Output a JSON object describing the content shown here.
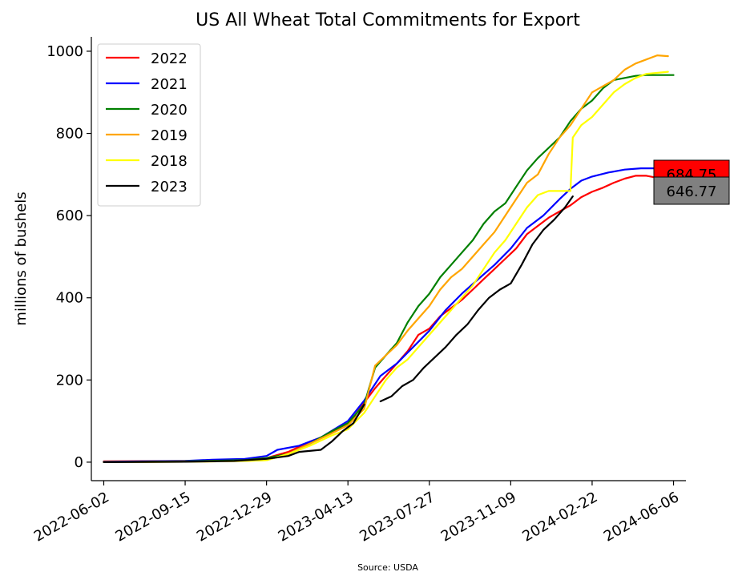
{
  "chart_data": {
    "type": "line",
    "title": "US All Wheat Total Commitments for Export",
    "ylabel": "millions of bushels",
    "xlabel": "",
    "source": "Source: USDA",
    "ylim": [
      -45,
      1035
    ],
    "xlim": [
      "2022-05-17",
      "2024-06-22"
    ],
    "x_ticks": [
      "2022-06-02",
      "2022-09-15",
      "2022-12-29",
      "2023-04-13",
      "2023-07-27",
      "2023-11-09",
      "2024-02-22",
      "2024-06-06"
    ],
    "y_ticks": [
      0,
      200,
      400,
      600,
      800,
      1000
    ],
    "legend_position": "upper-left",
    "end_labels": [
      {
        "text": "684.75",
        "value": 684.75,
        "bg": "#ff0000"
      },
      {
        "text": "646.77",
        "value": 646.77,
        "bg": "#808080"
      }
    ],
    "series": [
      {
        "name": "2022",
        "color": "#ff0000",
        "points": [
          [
            "2022-06-02",
            2
          ],
          [
            "2022-09-15",
            3
          ],
          [
            "2022-12-01",
            6
          ],
          [
            "2022-12-29",
            10
          ],
          [
            "2023-01-26",
            25
          ],
          [
            "2023-02-23",
            50
          ],
          [
            "2023-03-16",
            65
          ],
          [
            "2023-04-13",
            90
          ],
          [
            "2023-05-04",
            145
          ],
          [
            "2023-05-18",
            180
          ],
          [
            "2023-06-01",
            210
          ],
          [
            "2023-06-15",
            240
          ],
          [
            "2023-06-29",
            270
          ],
          [
            "2023-07-13",
            310
          ],
          [
            "2023-07-27",
            325
          ],
          [
            "2023-08-10",
            355
          ],
          [
            "2023-08-24",
            375
          ],
          [
            "2023-09-07",
            395
          ],
          [
            "2023-09-21",
            420
          ],
          [
            "2023-10-05",
            445
          ],
          [
            "2023-10-19",
            470
          ],
          [
            "2023-11-02",
            495
          ],
          [
            "2023-11-16",
            520
          ],
          [
            "2023-11-30",
            555
          ],
          [
            "2023-12-14",
            575
          ],
          [
            "2023-12-28",
            595
          ],
          [
            "2024-01-11",
            610
          ],
          [
            "2024-01-25",
            625
          ],
          [
            "2024-02-08",
            645
          ],
          [
            "2024-02-22",
            658
          ],
          [
            "2024-03-07",
            668
          ],
          [
            "2024-03-21",
            680
          ],
          [
            "2024-04-04",
            690
          ],
          [
            "2024-04-18",
            697
          ],
          [
            "2024-05-02",
            697
          ],
          [
            "2024-05-16",
            692
          ],
          [
            "2024-05-30",
            684.75
          ]
        ]
      },
      {
        "name": "2021",
        "color": "#0000ff",
        "points": [
          [
            "2022-06-02",
            1
          ],
          [
            "2022-09-15",
            3
          ],
          [
            "2022-10-20",
            6
          ],
          [
            "2022-12-01",
            8
          ],
          [
            "2022-12-29",
            15
          ],
          [
            "2023-01-12",
            30
          ],
          [
            "2023-02-09",
            40
          ],
          [
            "2023-03-09",
            60
          ],
          [
            "2023-04-13",
            100
          ],
          [
            "2023-05-04",
            150
          ],
          [
            "2023-05-25",
            210
          ],
          [
            "2023-06-15",
            240
          ],
          [
            "2023-07-06",
            280
          ],
          [
            "2023-07-27",
            320
          ],
          [
            "2023-08-17",
            370
          ],
          [
            "2023-09-07",
            410
          ],
          [
            "2023-09-28",
            445
          ],
          [
            "2023-10-19",
            480
          ],
          [
            "2023-11-09",
            520
          ],
          [
            "2023-11-30",
            570
          ],
          [
            "2023-12-21",
            600
          ],
          [
            "2024-01-11",
            640
          ],
          [
            "2024-01-25",
            665
          ],
          [
            "2024-02-08",
            685
          ],
          [
            "2024-02-22",
            695
          ],
          [
            "2024-03-14",
            705
          ],
          [
            "2024-04-04",
            712
          ],
          [
            "2024-04-25",
            715
          ],
          [
            "2024-06-06",
            715
          ]
        ]
      },
      {
        "name": "2020",
        "color": "#008000",
        "points": [
          [
            "2022-06-02",
            0
          ],
          [
            "2022-09-15",
            2
          ],
          [
            "2022-12-01",
            5
          ],
          [
            "2022-12-29",
            10
          ],
          [
            "2023-01-26",
            20
          ],
          [
            "2023-02-23",
            45
          ],
          [
            "2023-03-23",
            75
          ],
          [
            "2023-04-13",
            95
          ],
          [
            "2023-05-04",
            140
          ],
          [
            "2023-05-18",
            230
          ],
          [
            "2023-06-01",
            260
          ],
          [
            "2023-06-15",
            290
          ],
          [
            "2023-06-29",
            340
          ],
          [
            "2023-07-13",
            380
          ],
          [
            "2023-07-27",
            410
          ],
          [
            "2023-08-10",
            450
          ],
          [
            "2023-08-24",
            480
          ],
          [
            "2023-09-07",
            510
          ],
          [
            "2023-09-21",
            540
          ],
          [
            "2023-10-05",
            580
          ],
          [
            "2023-10-19",
            610
          ],
          [
            "2023-11-02",
            630
          ],
          [
            "2023-11-16",
            670
          ],
          [
            "2023-11-30",
            710
          ],
          [
            "2023-12-14",
            740
          ],
          [
            "2023-12-28",
            765
          ],
          [
            "2024-01-11",
            790
          ],
          [
            "2024-01-25",
            830
          ],
          [
            "2024-02-08",
            860
          ],
          [
            "2024-02-22",
            880
          ],
          [
            "2024-03-07",
            910
          ],
          [
            "2024-03-21",
            930
          ],
          [
            "2024-04-04",
            935
          ],
          [
            "2024-04-18",
            940
          ],
          [
            "2024-05-02",
            942
          ],
          [
            "2024-06-06",
            942
          ]
        ]
      },
      {
        "name": "2019",
        "color": "#ffa500",
        "points": [
          [
            "2022-06-02",
            0
          ],
          [
            "2022-09-15",
            1
          ],
          [
            "2022-12-01",
            3
          ],
          [
            "2022-12-29",
            5
          ],
          [
            "2023-01-26",
            20
          ],
          [
            "2023-02-23",
            45
          ],
          [
            "2023-03-23",
            70
          ],
          [
            "2023-04-13",
            90
          ],
          [
            "2023-05-04",
            130
          ],
          [
            "2023-05-18",
            235
          ],
          [
            "2023-06-01",
            260
          ],
          [
            "2023-06-15",
            285
          ],
          [
            "2023-06-29",
            320
          ],
          [
            "2023-07-13",
            350
          ],
          [
            "2023-07-27",
            380
          ],
          [
            "2023-08-10",
            420
          ],
          [
            "2023-08-24",
            450
          ],
          [
            "2023-09-07",
            470
          ],
          [
            "2023-09-21",
            500
          ],
          [
            "2023-10-05",
            530
          ],
          [
            "2023-10-19",
            560
          ],
          [
            "2023-11-02",
            600
          ],
          [
            "2023-11-16",
            640
          ],
          [
            "2023-11-30",
            680
          ],
          [
            "2023-12-14",
            700
          ],
          [
            "2023-12-28",
            750
          ],
          [
            "2024-01-11",
            790
          ],
          [
            "2024-01-25",
            820
          ],
          [
            "2024-02-08",
            860
          ],
          [
            "2024-02-22",
            900
          ],
          [
            "2024-03-07",
            915
          ],
          [
            "2024-03-21",
            930
          ],
          [
            "2024-04-04",
            955
          ],
          [
            "2024-04-18",
            970
          ],
          [
            "2024-05-02",
            980
          ],
          [
            "2024-05-16",
            990
          ],
          [
            "2024-05-30",
            988
          ]
        ]
      },
      {
        "name": "2018",
        "color": "#ffff00",
        "points": [
          [
            "2022-06-02",
            0
          ],
          [
            "2022-09-15",
            1
          ],
          [
            "2022-12-01",
            3
          ],
          [
            "2022-12-29",
            5
          ],
          [
            "2023-01-26",
            20
          ],
          [
            "2023-02-23",
            40
          ],
          [
            "2023-03-23",
            65
          ],
          [
            "2023-04-13",
            80
          ],
          [
            "2023-05-04",
            120
          ],
          [
            "2023-05-18",
            160
          ],
          [
            "2023-06-01",
            200
          ],
          [
            "2023-06-15",
            230
          ],
          [
            "2023-06-29",
            250
          ],
          [
            "2023-07-13",
            280
          ],
          [
            "2023-07-27",
            310
          ],
          [
            "2023-08-10",
            340
          ],
          [
            "2023-08-24",
            370
          ],
          [
            "2023-09-07",
            400
          ],
          [
            "2023-09-21",
            430
          ],
          [
            "2023-10-05",
            470
          ],
          [
            "2023-10-19",
            510
          ],
          [
            "2023-11-02",
            540
          ],
          [
            "2023-11-16",
            580
          ],
          [
            "2023-11-30",
            620
          ],
          [
            "2023-12-14",
            650
          ],
          [
            "2023-12-28",
            660
          ],
          [
            "2024-01-11",
            660
          ],
          [
            "2024-01-25",
            660
          ],
          [
            "2024-01-28",
            790
          ],
          [
            "2024-02-08",
            820
          ],
          [
            "2024-02-22",
            840
          ],
          [
            "2024-03-07",
            870
          ],
          [
            "2024-03-21",
            900
          ],
          [
            "2024-04-04",
            920
          ],
          [
            "2024-04-18",
            935
          ],
          [
            "2024-05-02",
            945
          ],
          [
            "2024-05-30",
            950
          ]
        ]
      },
      {
        "name": "2023",
        "color": "#000000",
        "segments": [
          [
            [
              "2022-06-02",
              0
            ],
            [
              "2022-09-15",
              1
            ],
            [
              "2022-11-17",
              3
            ],
            [
              "2022-12-29",
              8
            ],
            [
              "2023-01-26",
              15
            ],
            [
              "2023-02-09",
              25
            ],
            [
              "2023-03-09",
              30
            ],
            [
              "2023-03-23",
              50
            ],
            [
              "2023-04-06",
              75
            ],
            [
              "2023-04-20",
              95
            ],
            [
              "2023-05-04",
              140
            ]
          ],
          [
            [
              "2023-05-25",
              148
            ],
            [
              "2023-06-08",
              160
            ],
            [
              "2023-06-22",
              185
            ],
            [
              "2023-07-06",
              200
            ],
            [
              "2023-07-20",
              230
            ],
            [
              "2023-08-03",
              255
            ],
            [
              "2023-08-17",
              280
            ],
            [
              "2023-08-31",
              310
            ],
            [
              "2023-09-14",
              335
            ],
            [
              "2023-09-28",
              370
            ],
            [
              "2023-10-12",
              400
            ],
            [
              "2023-10-26",
              420
            ],
            [
              "2023-11-09",
              435
            ],
            [
              "2023-11-23",
              480
            ],
            [
              "2023-12-07",
              530
            ],
            [
              "2023-12-21",
              565
            ],
            [
              "2024-01-04",
              590
            ],
            [
              "2024-01-18",
              620
            ],
            [
              "2024-01-28",
              646.77
            ]
          ]
        ]
      }
    ]
  }
}
